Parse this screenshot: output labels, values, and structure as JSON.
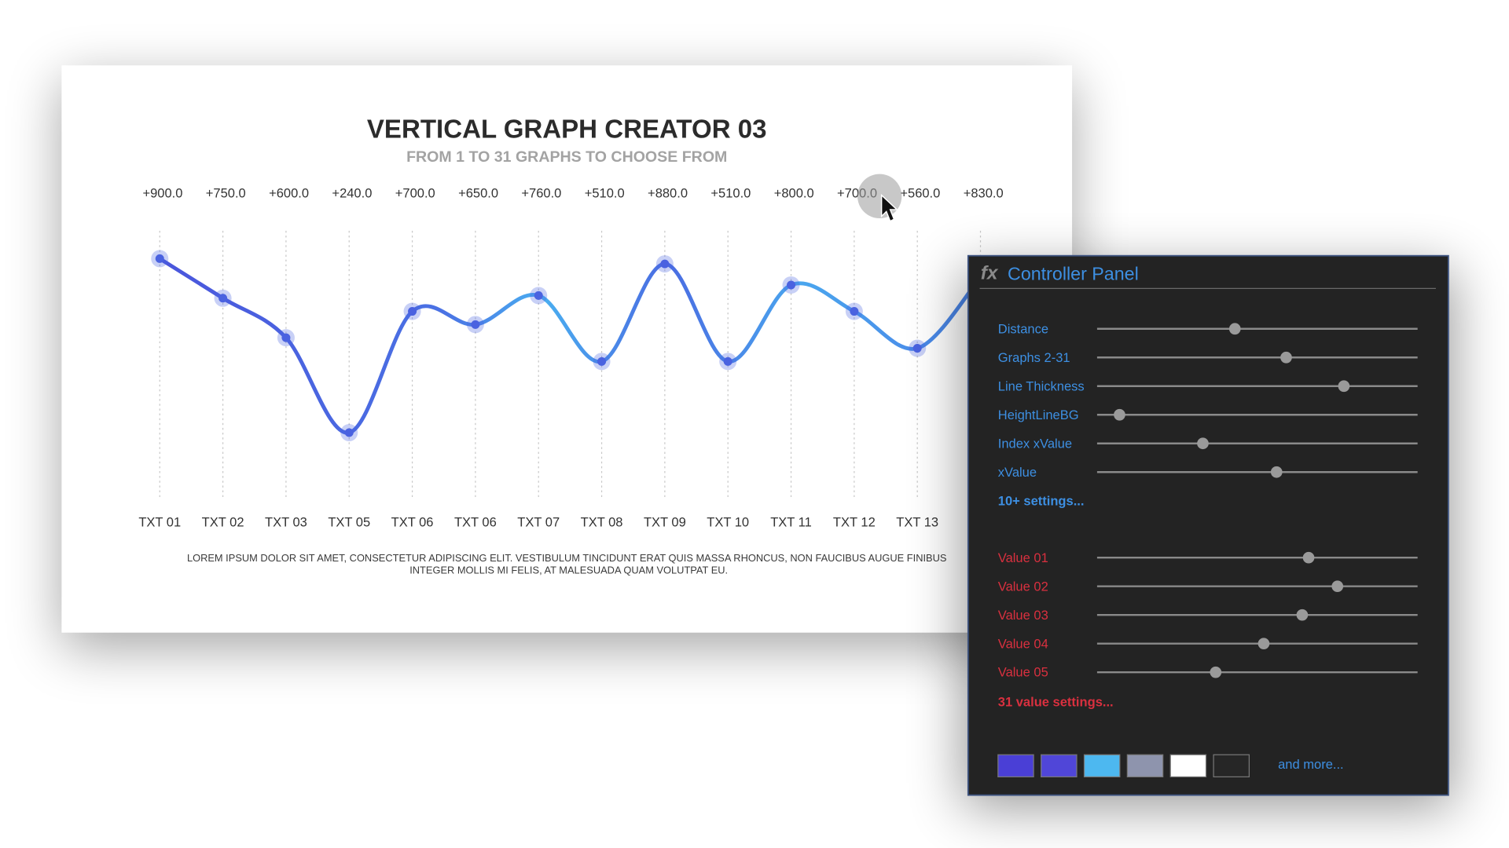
{
  "chart_data": {
    "type": "line",
    "title": "VERTICAL GRAPH CREATOR 03",
    "subtitle": "FROM 1 TO 31 GRAPHS TO CHOOSE FROM",
    "categories": [
      "TXT 01",
      "TXT 02",
      "TXT 03",
      "TXT 05",
      "TXT 06",
      "TXT 06",
      "TXT 07",
      "TXT 08",
      "TXT 09",
      "TXT 10",
      "TXT 11",
      "TXT 12",
      "TXT 13",
      null
    ],
    "values": [
      900,
      750,
      600,
      240,
      700,
      650,
      760,
      510,
      880,
      510,
      800,
      700,
      560,
      830
    ],
    "value_labels": [
      "+900.0",
      "+750.0",
      "+600.0",
      "+240.0",
      "+700.0",
      "+650.0",
      "+760.0",
      "+510.0",
      "+880.0",
      "+510.0",
      "+800.0",
      "+700.0",
      "+560.0",
      "+830.0"
    ],
    "color": "#4a62e0",
    "grid": true,
    "footnote": [
      "LOREM IPSUM DOLOR SIT AMET, CONSECTETUR ADIPISCING ELIT. VESTIBULUM TINCIDUNT ERAT QUIS MASSA RHONCUS, NON FAUCIBUS AUGUE FINIBUS",
      "INTEGER MOLLIS MI FELIS, AT MALESUADA QUAM VOLUTPAT EU."
    ]
  },
  "panel": {
    "icon": "fx",
    "title": "Controller Panel",
    "sliders": [
      {
        "label": "Distance",
        "position": 43
      },
      {
        "label": "Graphs 2-31",
        "position": 59
      },
      {
        "label": "Line Thickness",
        "position": 77
      },
      {
        "label": "HeightLineBG",
        "position": 7
      },
      {
        "label": "Index xValue",
        "position": 33
      },
      {
        "label": "xValue",
        "position": 56
      }
    ],
    "sliders_link": "10+ settings...",
    "values": [
      {
        "label": "Value 01",
        "position": 66
      },
      {
        "label": "Value 02",
        "position": 75
      },
      {
        "label": "Value 03",
        "position": 64
      },
      {
        "label": "Value 04",
        "position": 52
      },
      {
        "label": "Value 05",
        "position": 37
      }
    ],
    "values_link": "31 value settings...",
    "swatches": [
      "#4a3fd6",
      "#5046d8",
      "#4db8f0",
      "#8e94ad",
      "#ffffff",
      "#262626"
    ],
    "more": "and more..."
  }
}
